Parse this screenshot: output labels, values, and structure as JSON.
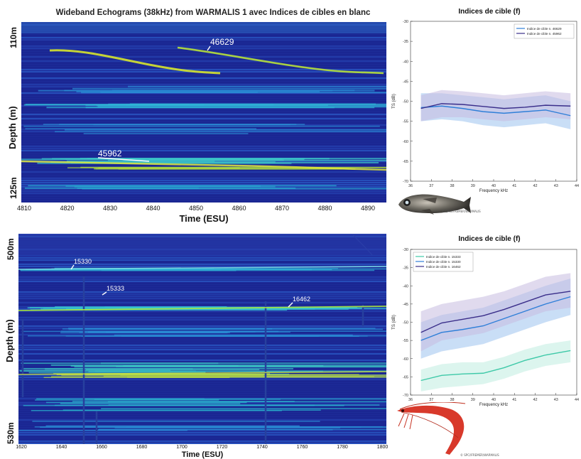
{
  "top_title": "Wideband Echograms (38kHz) from WARMALIS 1  avec Indices de cibles en blanc",
  "echogram_top": {
    "depth_top": "110m",
    "depth_bottom": "125m",
    "ylabel": "Depth (m)",
    "xlabel": "Time (ESU)",
    "xticks": [
      "4810",
      "4820",
      "4830",
      "4840",
      "4850",
      "4860",
      "4870",
      "4880",
      "4890"
    ],
    "targets": [
      "46629",
      "45962"
    ]
  },
  "echogram_bottom": {
    "depth_top": "500m",
    "depth_bottom": "530m",
    "ylabel": "Depth (m)",
    "xlabel": "Time (ESU)",
    "xticks": [
      "1620",
      "1640",
      "1660",
      "1680",
      "1700",
      "1720",
      "1740",
      "1760",
      "1780",
      "1800"
    ],
    "targets": [
      "15330",
      "15333",
      "16462"
    ]
  },
  "fish_caption": "© SPC/IFREMER/WARMALIS",
  "shrimp_caption": "© SPC/IFREMER/WARMALIS",
  "colors": {
    "bg_blue": "#1f2f9c",
    "accent_cyan": "#22c8e0",
    "accent_yellow": "#d8e82a"
  },
  "chart_data": [
    {
      "type": "line",
      "title": "Indices de cible (f)",
      "xlabel": "Frequency kHz",
      "ylabel": "TS (dB)",
      "xlim": [
        36,
        44
      ],
      "ylim": [
        -70,
        -30
      ],
      "x": [
        36.5,
        37.5,
        38.5,
        39.5,
        40.5,
        41.5,
        42.5,
        43.7
      ],
      "xticks": [
        "36",
        "37",
        "38",
        "39",
        "40",
        "41",
        "42",
        "43",
        "44"
      ],
      "yticks": [
        "-70",
        "-65",
        "-60",
        "-55",
        "-50",
        "-45",
        "-40",
        "-35",
        "-30"
      ],
      "legend": "top-right",
      "series": [
        {
          "name": "Indice de cible n. 46629",
          "color": "#2f7fd8",
          "band": "#9cc2ee",
          "values": [
            -51.6,
            -51.2,
            -51.8,
            -52.6,
            -53.0,
            -52.6,
            -52.2,
            -53.6
          ],
          "lower": [
            -55,
            -54.5,
            -55,
            -56,
            -56.5,
            -56,
            -55.5,
            -57
          ],
          "upper": [
            -48,
            -48,
            -48.5,
            -49,
            -49.5,
            -49,
            -48.5,
            -50
          ]
        },
        {
          "name": "Indice de cible n. 45962",
          "color": "#3a2e8a",
          "band": "#c6bce0",
          "values": [
            -51.8,
            -50.6,
            -50.8,
            -51.3,
            -51.8,
            -51.5,
            -51.0,
            -51.2
          ],
          "lower": [
            -55,
            -54,
            -54,
            -54.5,
            -55,
            -54.5,
            -54,
            -54.5
          ],
          "upper": [
            -48.5,
            -47.2,
            -47.5,
            -48,
            -48.5,
            -48,
            -47.5,
            -48
          ]
        }
      ]
    },
    {
      "type": "line",
      "title": "Indices de cible (f)",
      "xlabel": "Frequency kHz",
      "ylabel": "TS (dB)",
      "xlim": [
        36,
        44
      ],
      "ylim": [
        -70,
        -30
      ],
      "x": [
        36.5,
        37.5,
        38.5,
        39.5,
        40.5,
        41.5,
        42.5,
        43.7
      ],
      "xticks": [
        "36",
        "37",
        "38",
        "39",
        "40",
        "41",
        "42",
        "43",
        "44"
      ],
      "yticks": [
        "-70",
        "-65",
        "-60",
        "-55",
        "-50",
        "-45",
        "-40",
        "-35",
        "-30"
      ],
      "legend": "top-left",
      "series": [
        {
          "name": "Indice de cible n. 15333",
          "color": "#3ec9a8",
          "band": "#bfece0",
          "values": [
            -66.0,
            -64.6,
            -64.2,
            -64.0,
            -62.5,
            -60.5,
            -59.0,
            -57.8
          ],
          "lower": [
            -69,
            -68,
            -67.5,
            -67,
            -65.5,
            -63.5,
            -62,
            -61
          ],
          "upper": [
            -63,
            -61.5,
            -61,
            -61,
            -59.5,
            -57.5,
            -56,
            -55
          ]
        },
        {
          "name": "Indice de cible n. 15330",
          "color": "#2f7fd8",
          "band": "#9cc2ee",
          "values": [
            -55.0,
            -52.8,
            -52.0,
            -51.0,
            -49.0,
            -47.0,
            -45.0,
            -43.0
          ],
          "lower": [
            -60,
            -58,
            -57,
            -56,
            -54,
            -52,
            -50,
            -48
          ],
          "upper": [
            -50,
            -48,
            -47,
            -46,
            -44,
            -42,
            -40,
            -38
          ]
        },
        {
          "name": "Indice de cible n. 16462",
          "color": "#3a2e8a",
          "band": "#c6bce0",
          "values": [
            -52.8,
            -50.2,
            -49.2,
            -48.2,
            -46.5,
            -44.5,
            -42.5,
            -41.5
          ],
          "lower": [
            -58,
            -55,
            -54,
            -53,
            -51,
            -49,
            -47,
            -46
          ],
          "upper": [
            -47,
            -45,
            -44,
            -43,
            -41.5,
            -39.5,
            -37.5,
            -36.5
          ]
        }
      ]
    }
  ]
}
